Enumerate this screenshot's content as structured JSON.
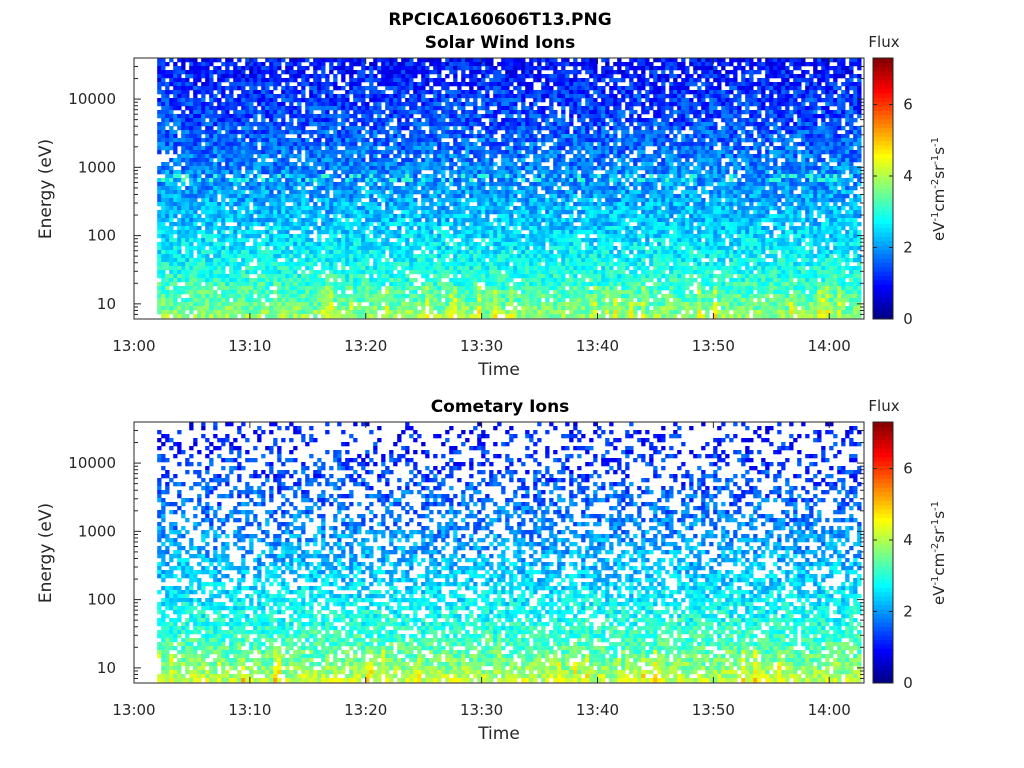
{
  "figure": {
    "title": "RPCICA160606T13.PNG"
  },
  "chart_data": [
    {
      "type": "heatmap",
      "title": "Solar Wind Ions",
      "xlabel": "Time",
      "ylabel": "Energy (eV)",
      "x_range": [
        "13:00",
        "14:03"
      ],
      "x_ticks": [
        "13:00",
        "13:10",
        "13:20",
        "13:30",
        "13:40",
        "13:50",
        "14:00"
      ],
      "y_scale": "log",
      "y_range": [
        6,
        40000
      ],
      "y_ticks": [
        "10",
        "100",
        "1000",
        "10000"
      ],
      "y_tick_values": [
        10,
        100,
        1000,
        10000
      ],
      "data_time_range": [
        "13:02",
        "14:03"
      ],
      "colorbar": {
        "title": "Flux",
        "label": "eV-1cm-2sr-1s-1",
        "range": [
          0,
          7.3
        ],
        "ticks": [
          "0",
          "2",
          "4",
          "6"
        ],
        "tick_values": [
          0,
          2,
          4,
          6
        ],
        "colormap": "jet"
      },
      "profile": {
        "low_energy_flux": 4.0,
        "high_energy_flux": 1.0,
        "fill_fraction_low": 0.93,
        "fill_fraction_high": 0.8,
        "band_energy": 700,
        "band_flux": 2.9
      }
    },
    {
      "type": "heatmap",
      "title": "Cometary Ions",
      "xlabel": "Time",
      "ylabel": "Energy (eV)",
      "x_range": [
        "13:00",
        "14:03"
      ],
      "x_ticks": [
        "13:00",
        "13:10",
        "13:20",
        "13:30",
        "13:40",
        "13:50",
        "14:00"
      ],
      "y_scale": "log",
      "y_range": [
        6,
        40000
      ],
      "y_ticks": [
        "10",
        "100",
        "1000",
        "10000"
      ],
      "y_tick_values": [
        10,
        100,
        1000,
        10000
      ],
      "data_time_range": [
        "13:02",
        "14:03"
      ],
      "colorbar": {
        "title": "Flux",
        "label": "eV-1cm-2sr-1s-1",
        "range": [
          0,
          7.3
        ],
        "ticks": [
          "0",
          "2",
          "4",
          "6"
        ],
        "tick_values": [
          0,
          2,
          4,
          6
        ],
        "colormap": "jet"
      },
      "profile": {
        "low_energy_flux": 4.3,
        "high_energy_flux": 1.0,
        "fill_fraction_low": 0.9,
        "fill_fraction_high": 0.2,
        "band_energy": 700,
        "band_flux": 2.0
      }
    }
  ]
}
